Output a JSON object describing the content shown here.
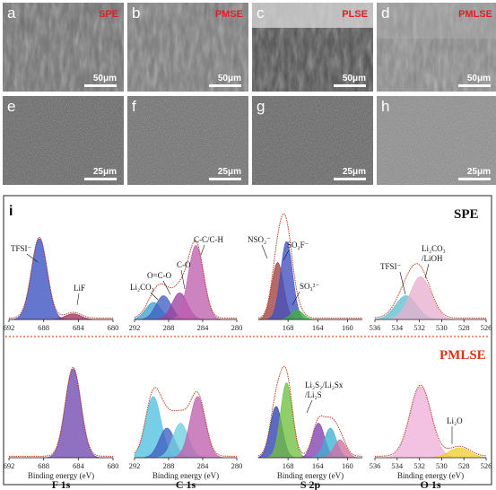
{
  "sem": {
    "tiles": [
      {
        "letter": "a",
        "tag": "SPE",
        "scale": "50μm"
      },
      {
        "letter": "b",
        "tag": "PMSE",
        "scale": "50μm"
      },
      {
        "letter": "c",
        "tag": "PLSE",
        "scale": "50μm"
      },
      {
        "letter": "d",
        "tag": "PMLSE",
        "scale": "50μm"
      },
      {
        "letter": "e",
        "tag": "",
        "scale": "25μm"
      },
      {
        "letter": "f",
        "tag": "",
        "scale": "25μm"
      },
      {
        "letter": "g",
        "tag": "",
        "scale": "25μm"
      },
      {
        "letter": "h",
        "tag": "",
        "scale": "25μm"
      }
    ],
    "tag_color": "#e02020"
  },
  "xps": {
    "panel_letter": "i",
    "row_labels": [
      "SPE",
      "PMLSE"
    ],
    "row_label_colors": [
      "#111111",
      "#e03010"
    ],
    "xlabel": "Binding energy (eV)",
    "columns": [
      {
        "name": "F 1s",
        "xlim": [
          692,
          680
        ],
        "ticks": [
          "692",
          "688",
          "684",
          "680"
        ]
      },
      {
        "name": "C 1s",
        "xlim": [
          292,
          280
        ],
        "ticks": [
          "292",
          "288",
          "284",
          "280"
        ]
      },
      {
        "name": "S 2p",
        "xlim": [
          172,
          158
        ],
        "ticks": [
          "168",
          "164",
          "160"
        ]
      },
      {
        "name": "O 1s",
        "xlim": [
          536,
          526
        ],
        "ticks": [
          "536",
          "534",
          "532",
          "530",
          "528",
          "526"
        ]
      }
    ],
    "annotations_spe": {
      "f1s": [
        "TFSI⁻",
        "LiF"
      ],
      "c1s": [
        "C-C/C-H",
        "C-O",
        "O=C-O",
        "Li₂CO₃"
      ],
      "s2p": [
        "NSO₂⁻",
        "SO₂F⁻",
        "SO₃²⁻"
      ],
      "o1s": [
        "Li₂CO₃",
        "/LiOH",
        "TFSI⁻"
      ]
    },
    "annotations_pmlse": {
      "s2p": [
        "Li₂S₂/Li₂Sx",
        "/Li₂S"
      ],
      "o1s": [
        "Li₂O"
      ]
    }
  },
  "chart_data": {
    "type": "area",
    "panels": [
      {
        "row": "SPE",
        "spectrum": "F 1s",
        "peaks": [
          {
            "center": 688.5,
            "height": 0.85,
            "color": "#3a4fc0"
          },
          {
            "center": 684.6,
            "height": 0.06,
            "color": "#a03060"
          }
        ]
      },
      {
        "row": "SPE",
        "spectrum": "C 1s",
        "peaks": [
          {
            "center": 289.8,
            "height": 0.18,
            "color": "#40a0d0"
          },
          {
            "center": 288.6,
            "height": 0.25,
            "color": "#4060c0"
          },
          {
            "center": 286.7,
            "height": 0.28,
            "color": "#a040a0"
          },
          {
            "center": 284.8,
            "height": 0.78,
            "color": "#c060b0"
          }
        ]
      },
      {
        "row": "SPE",
        "spectrum": "S 2p",
        "peaks": [
          {
            "center": 169.4,
            "height": 0.6,
            "color": "#a04040"
          },
          {
            "center": 168.2,
            "height": 0.82,
            "color": "#4050c0"
          },
          {
            "center": 166.8,
            "height": 0.1,
            "color": "#40b040"
          }
        ]
      },
      {
        "row": "SPE",
        "spectrum": "O 1s",
        "peaks": [
          {
            "center": 533.2,
            "height": 0.25,
            "color": "#60c0d0"
          },
          {
            "center": 531.9,
            "height": 0.45,
            "color": "#e8b0d0"
          }
        ]
      },
      {
        "row": "PMLSE",
        "spectrum": "F 1s",
        "peaks": [
          {
            "center": 684.6,
            "height": 0.9,
            "color": "#7048b0"
          }
        ]
      },
      {
        "row": "PMLSE",
        "spectrum": "C 1s",
        "peaks": [
          {
            "center": 289.8,
            "height": 0.62,
            "color": "#50c0e0"
          },
          {
            "center": 288.2,
            "height": 0.3,
            "color": "#4060c0"
          },
          {
            "center": 286.6,
            "height": 0.35,
            "color": "#70d0e0"
          },
          {
            "center": 284.6,
            "height": 0.62,
            "color": "#c060b0"
          }
        ]
      },
      {
        "row": "PMLSE",
        "spectrum": "S 2p",
        "peaks": [
          {
            "center": 169.6,
            "height": 0.52,
            "color": "#3040b0"
          },
          {
            "center": 168.2,
            "height": 0.76,
            "color": "#70c040"
          },
          {
            "center": 163.9,
            "height": 0.35,
            "color": "#8040b0"
          },
          {
            "center": 162.3,
            "height": 0.3,
            "color": "#40b0d0"
          },
          {
            "center": 161.0,
            "height": 0.18,
            "color": "#d070a0"
          }
        ]
      },
      {
        "row": "PMLSE",
        "spectrum": "O 1s",
        "peaks": [
          {
            "center": 531.9,
            "height": 0.72,
            "color": "#f0b0d8"
          },
          {
            "center": 528.4,
            "height": 0.1,
            "color": "#f0d030"
          }
        ]
      }
    ]
  }
}
